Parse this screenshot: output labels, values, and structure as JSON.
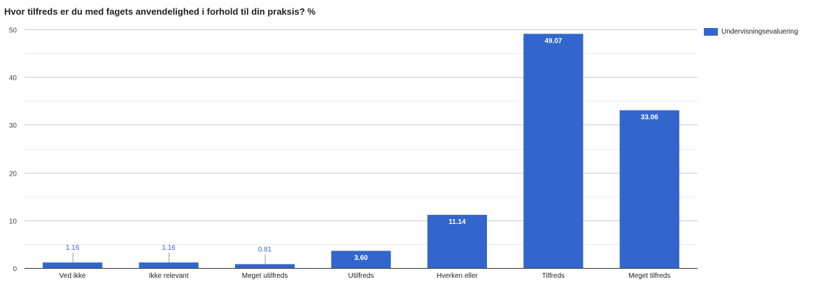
{
  "chart_data": {
    "type": "bar",
    "title": "Hvor tilfreds er du med fagets anvendelighed i forhold til din praksis? %",
    "categories": [
      "Ved ikke",
      "Ikke relevant",
      "Meget utilfreds",
      "Utilfreds",
      "Hverken eller",
      "Tilfreds",
      "Meget tilfreds"
    ],
    "series": [
      {
        "name": "Undervisningsevaluering",
        "values": [
          1.16,
          1.16,
          0.81,
          3.6,
          11.14,
          49.07,
          33.06
        ],
        "labels": [
          "1.16",
          "1.16",
          "0.81",
          "3.60",
          "11.14",
          "49.07",
          "33.06"
        ]
      }
    ],
    "ylim": [
      0,
      50
    ],
    "yticks": [
      0,
      10,
      20,
      30,
      40,
      50
    ],
    "grid": true,
    "legend_position": "right",
    "colors": {
      "bar": "#3366cc",
      "gridline": "#cccccc",
      "minor_gridline": "#ebebeb",
      "axis_text": "#444444",
      "inside_label": "#ffffff"
    }
  }
}
